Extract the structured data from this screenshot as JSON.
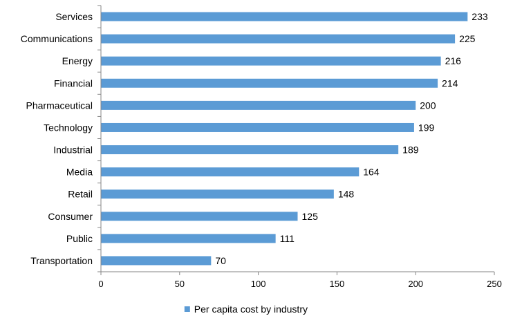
{
  "chart_data": {
    "type": "bar",
    "orientation": "horizontal",
    "title": "",
    "xlabel": "",
    "ylabel": "",
    "categories": [
      "Services",
      "Communications",
      "Energy",
      "Financial",
      "Pharmaceutical",
      "Technology",
      "Industrial",
      "Media",
      "Retail",
      "Consumer",
      "Public",
      "Transportation"
    ],
    "series": [
      {
        "name": "Per capita cost by industry",
        "values": [
          233,
          225,
          216,
          214,
          200,
          199,
          189,
          164,
          148,
          125,
          111,
          70
        ]
      }
    ],
    "data_labels": [
      "233",
      "225",
      "216",
      "214",
      "200",
      "199",
      "189",
      "164",
      "148",
      "125",
      "111",
      "70"
    ],
    "xlim": [
      0,
      250
    ],
    "x_ticks": [
      "0",
      "50",
      "100",
      "150",
      "200",
      "250"
    ],
    "grid": false,
    "legend_position": "bottom",
    "colors": {
      "bar": "#5b9bd5",
      "axis": "#868686"
    }
  }
}
